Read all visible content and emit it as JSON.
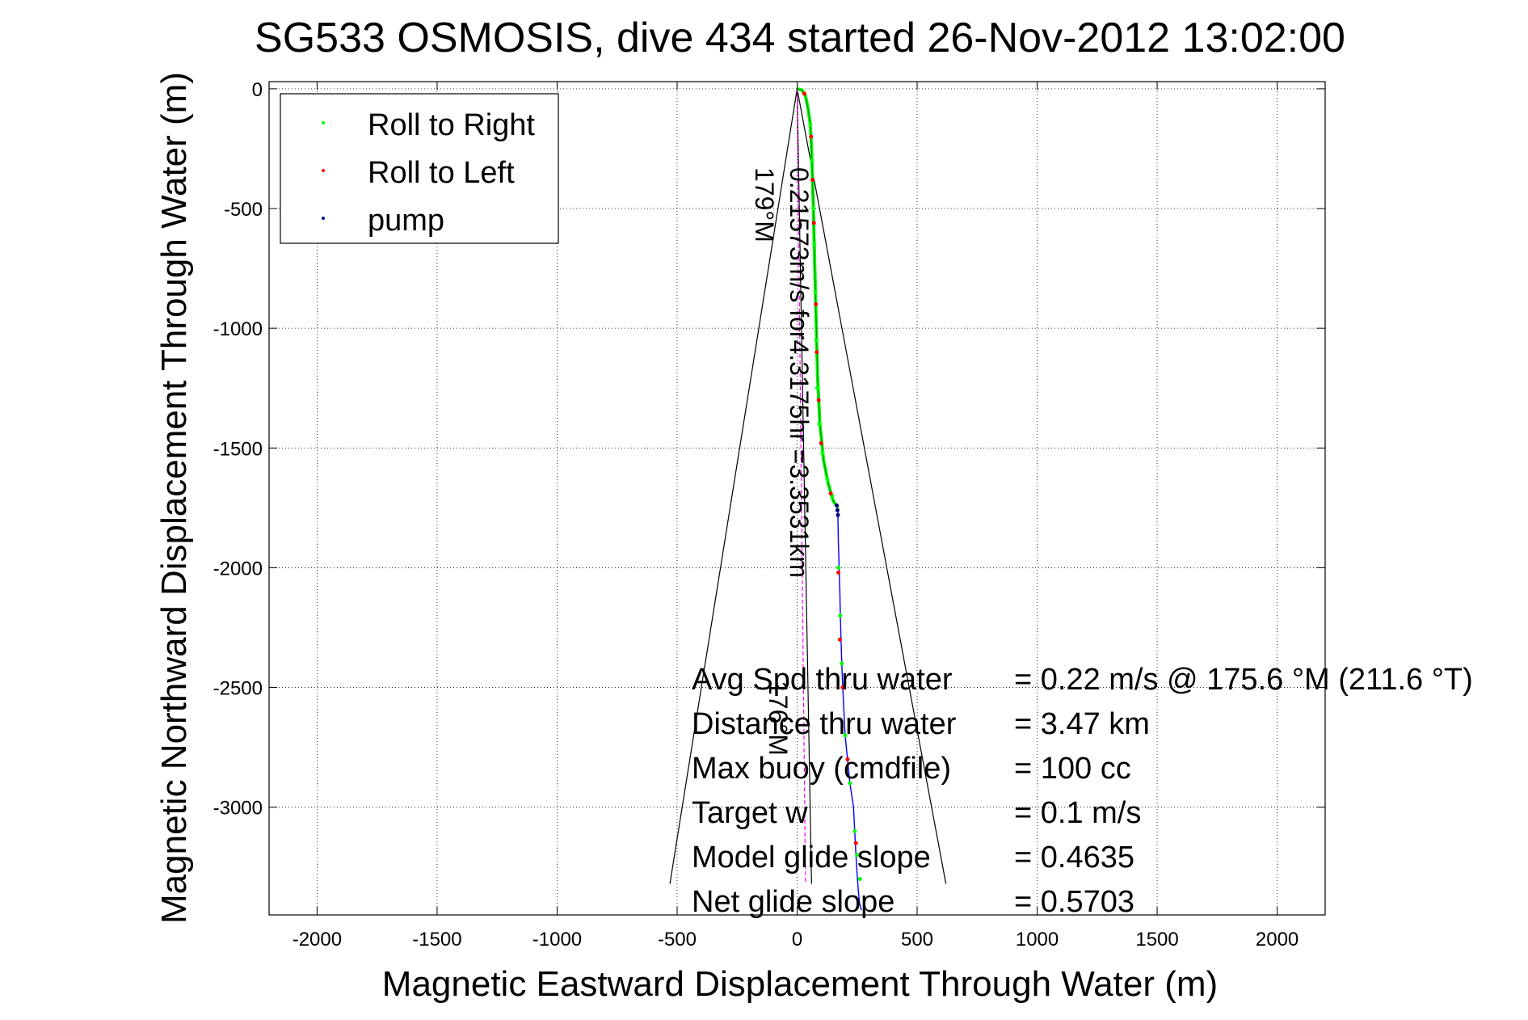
{
  "chart_data": {
    "type": "scatter",
    "title": "SG533 OSMOSIS, dive 434 started 26-Nov-2012 13:02:00",
    "xlabel": "Magnetic Eastward Displacement Through Water (m)",
    "ylabel": "Magnetic Northward Displacement Through Water (m)",
    "xlim": [
      -2200,
      2200
    ],
    "ylim": [
      -3450,
      30
    ],
    "x_ticks": [
      -2000,
      -1500,
      -1000,
      -500,
      0,
      500,
      1000,
      1500,
      2000
    ],
    "y_ticks": [
      0,
      -500,
      -1000,
      -1500,
      -2000,
      -2500,
      -3000
    ],
    "grid": true,
    "legend_position": "top-left",
    "legend": [
      {
        "label": "Roll to Right",
        "color": "#00ff00"
      },
      {
        "label": "Roll to Left",
        "color": "#ff0000"
      },
      {
        "label": "pump",
        "color": "#000080"
      }
    ],
    "track": {
      "x": [
        0,
        20,
        35,
        45,
        55,
        60,
        65,
        70,
        75,
        80,
        85,
        95,
        110,
        130,
        150,
        170,
        170,
        172,
        175,
        178,
        180,
        183,
        186,
        190,
        195,
        200,
        210,
        220,
        235,
        240,
        245,
        250,
        255,
        260,
        265,
        268
      ],
      "y": [
        0,
        -5,
        -30,
        -80,
        -150,
        -250,
        -400,
        -600,
        -800,
        -1000,
        -1200,
        -1400,
        -1550,
        -1650,
        -1720,
        -1750,
        -1800,
        -1900,
        -2000,
        -2100,
        -2200,
        -2300,
        -2400,
        -2500,
        -2600,
        -2700,
        -2800,
        -2900,
        -3000,
        -3100,
        -3200,
        -3280,
        -3350,
        -3400,
        -3420,
        -3430
      ],
      "color_green": "#00ff00",
      "color_blue": "#0000ff"
    },
    "series": [
      {
        "name": "Roll to Right",
        "color": "#00ff00",
        "x": [
          55,
          62,
          68,
          72,
          76,
          80,
          84,
          92,
          105,
          125,
          145,
          172,
          180,
          186,
          200,
          220,
          240,
          250,
          262
        ],
        "y": [
          -150,
          -300,
          -500,
          -650,
          -850,
          -1050,
          -1250,
          -1400,
          -1520,
          -1630,
          -1700,
          -2000,
          -2200,
          -2400,
          -2700,
          -2900,
          -3100,
          -3200,
          -3300
        ]
      },
      {
        "name": "Roll to Left",
        "color": "#ff0000",
        "x": [
          30,
          58,
          64,
          70,
          78,
          82,
          90,
          100,
          140,
          172,
          178,
          190,
          210,
          245
        ],
        "y": [
          -20,
          -200,
          -380,
          -560,
          -900,
          -1100,
          -1300,
          -1480,
          -1690,
          -2020,
          -2300,
          -2500,
          -2800,
          -3150
        ]
      },
      {
        "name": "pump",
        "color": "#000080",
        "x": [
          165,
          168,
          170
        ],
        "y": [
          -1740,
          -1760,
          -1780
        ]
      }
    ],
    "heading_line": {
      "label": "179°M",
      "color": "#000000",
      "x": [
        0,
        60
      ],
      "y": [
        0,
        -3320
      ],
      "cone_x": [
        -530,
        0,
        620
      ],
      "cone_y": [
        -3320,
        0,
        -3320
      ]
    },
    "net_line": {
      "label": "0.21573m/s for4.3175hr =3.3531km",
      "color": "#ff00ff",
      "x": [
        0,
        35
      ],
      "y": [
        0,
        -3320
      ]
    },
    "measured_heading_label": "176°M",
    "stats": [
      {
        "label": "Avg Spd thru water",
        "value": "=  0.22 m/s @ 175.6 °M (211.6 °T)"
      },
      {
        "label": "Distance thru water",
        "value": "=  3.47 km"
      },
      {
        "label": "Max buoy (cmdfile)",
        "value": "= 100 cc"
      },
      {
        "label": "Target w",
        "value": "= 0.1 m/s"
      },
      {
        "label": "Model glide slope",
        "value": "= 0.4635"
      },
      {
        "label": "Net glide slope",
        "value": "= 0.5703"
      }
    ]
  }
}
